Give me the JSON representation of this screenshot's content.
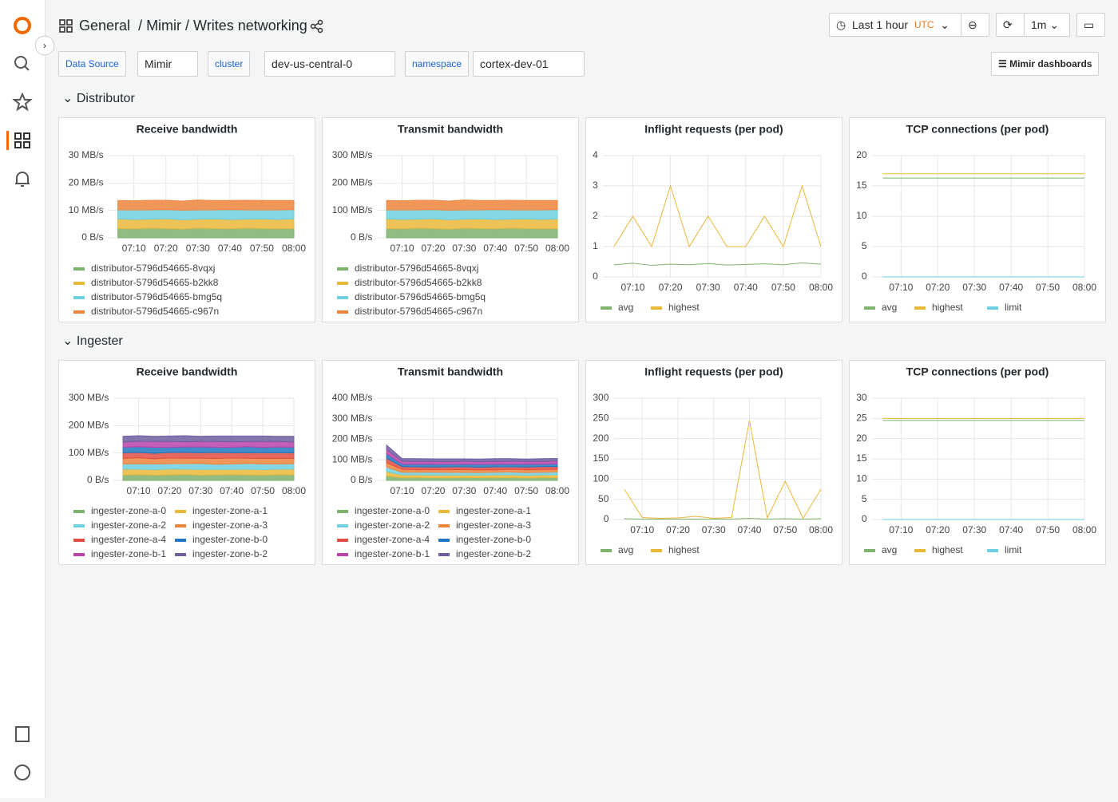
{
  "header": {
    "breadcrumb": [
      "General",
      "/ Mimir / Writes networking"
    ],
    "time_range": "Last 1 hour",
    "timezone": "UTC",
    "refresh": "1m"
  },
  "variables": [
    {
      "label": "Data Source",
      "value": "Mimir"
    },
    {
      "label": "cluster",
      "value": "dev-us-central-0"
    },
    {
      "label": "namespace",
      "value": "cortex-dev-01"
    }
  ],
  "links_button": "Mimir dashboards",
  "rows": [
    "Distributor",
    "Ingester"
  ],
  "chart_data": [
    {
      "type": "area",
      "stacked": true,
      "title": "Receive bandwidth",
      "x": [
        "07:05",
        "07:10",
        "07:15",
        "07:20",
        "07:25",
        "07:30",
        "07:35",
        "07:40",
        "07:45",
        "07:50",
        "07:55",
        "08:00"
      ],
      "xlim": [
        "07:02",
        "08:00"
      ],
      "xticks": [
        "07:10",
        "07:20",
        "07:30",
        "07:40",
        "07:50",
        "08:00"
      ],
      "ylim": [
        0,
        30
      ],
      "yticks": [
        {
          "value": 0,
          "label": "0 B/s"
        },
        {
          "value": 10,
          "label": "10 MB/s"
        },
        {
          "value": 20,
          "label": "20 MB/s"
        },
        {
          "value": 30,
          "label": "30 MB/s"
        }
      ],
      "grid": true,
      "legend": "bottom",
      "series": [
        {
          "name": "distributor-5796d54665-8vqxj",
          "color": "#7EB26D",
          "values": [
            3.4,
            3.3,
            3.5,
            3.4,
            3.2,
            3.5,
            3.4,
            3.3,
            3.5,
            3.4,
            3.3,
            3.4
          ]
        },
        {
          "name": "distributor-5796d54665-b2kk8",
          "color": "#EAB839",
          "values": [
            3.5,
            3.4,
            3.3,
            3.6,
            3.4,
            3.3,
            3.5,
            3.4,
            3.3,
            3.5,
            3.4,
            3.5
          ]
        },
        {
          "name": "distributor-5796d54665-bmg5q",
          "color": "#6ED0E0",
          "values": [
            3.3,
            3.5,
            3.4,
            3.3,
            3.5,
            3.4,
            3.3,
            3.6,
            3.4,
            3.3,
            3.5,
            3.4
          ]
        },
        {
          "name": "distributor-5796d54665-c967n",
          "color": "#EF843C",
          "values": [
            3.4,
            3.3,
            3.5,
            3.4,
            3.3,
            3.6,
            3.4,
            3.3,
            3.5,
            3.4,
            3.4,
            3.3
          ]
        }
      ]
    },
    {
      "type": "area",
      "stacked": true,
      "title": "Transmit bandwidth",
      "x": [
        "07:05",
        "07:10",
        "07:15",
        "07:20",
        "07:25",
        "07:30",
        "07:35",
        "07:40",
        "07:45",
        "07:50",
        "07:55",
        "08:00"
      ],
      "xlim": [
        "07:02",
        "08:00"
      ],
      "xticks": [
        "07:10",
        "07:20",
        "07:30",
        "07:40",
        "07:50",
        "08:00"
      ],
      "ylim": [
        0,
        300
      ],
      "yticks": [
        {
          "value": 0,
          "label": "0 B/s"
        },
        {
          "value": 100,
          "label": "100 MB/s"
        },
        {
          "value": 200,
          "label": "200 MB/s"
        },
        {
          "value": 300,
          "label": "300 MB/s"
        }
      ],
      "grid": true,
      "legend": "bottom",
      "series": [
        {
          "name": "distributor-5796d54665-8vqxj",
          "color": "#7EB26D",
          "values": [
            34,
            33,
            35,
            34,
            32,
            35,
            34,
            33,
            35,
            34,
            33,
            34
          ]
        },
        {
          "name": "distributor-5796d54665-b2kk8",
          "color": "#EAB839",
          "values": [
            35,
            34,
            33,
            36,
            34,
            33,
            35,
            34,
            33,
            35,
            34,
            35
          ]
        },
        {
          "name": "distributor-5796d54665-bmg5q",
          "color": "#6ED0E0",
          "values": [
            33,
            35,
            34,
            33,
            35,
            34,
            33,
            36,
            34,
            33,
            35,
            34
          ]
        },
        {
          "name": "distributor-5796d54665-c967n",
          "color": "#EF843C",
          "values": [
            34,
            33,
            35,
            34,
            33,
            36,
            34,
            33,
            35,
            34,
            34,
            33
          ]
        }
      ]
    },
    {
      "type": "line",
      "title": "Inflight requests (per pod)",
      "x": [
        "07:05",
        "07:10",
        "07:15",
        "07:20",
        "07:25",
        "07:30",
        "07:35",
        "07:40",
        "07:45",
        "07:50",
        "07:55",
        "08:00"
      ],
      "xlim": [
        "07:02",
        "08:00"
      ],
      "xticks": [
        "07:10",
        "07:20",
        "07:30",
        "07:40",
        "07:50",
        "08:00"
      ],
      "ylim": [
        0,
        4
      ],
      "yticks": [
        0,
        1,
        2,
        3,
        4
      ],
      "grid": true,
      "legend": "bottom",
      "series": [
        {
          "name": "avg",
          "color": "#7EB26D",
          "values": [
            0.4,
            0.45,
            0.38,
            0.42,
            0.4,
            0.44,
            0.39,
            0.41,
            0.43,
            0.4,
            0.46,
            0.42
          ]
        },
        {
          "name": "highest",
          "color": "#EAB839",
          "values": [
            1,
            2,
            1,
            3,
            1,
            2,
            1,
            1,
            2,
            1,
            3,
            1
          ]
        }
      ]
    },
    {
      "type": "line",
      "title": "TCP connections (per pod)",
      "x": [
        "07:05",
        "07:10",
        "07:15",
        "07:20",
        "07:25",
        "07:30",
        "07:35",
        "07:40",
        "07:45",
        "07:50",
        "07:55",
        "08:00"
      ],
      "xlim": [
        "07:02",
        "08:00"
      ],
      "xticks": [
        "07:10",
        "07:20",
        "07:30",
        "07:40",
        "07:50",
        "08:00"
      ],
      "ylim": [
        0,
        20
      ],
      "yticks": [
        0,
        5,
        10,
        15,
        20
      ],
      "grid": true,
      "legend": "bottom",
      "series": [
        {
          "name": "avg",
          "color": "#7EB26D",
          "values": [
            16.3,
            16.3,
            16.3,
            16.3,
            16.3,
            16.3,
            16.3,
            16.3,
            16.3,
            16.3,
            16.3,
            16.3
          ]
        },
        {
          "name": "highest",
          "color": "#EAB839",
          "values": [
            17,
            17,
            17,
            17,
            17,
            17,
            17,
            17,
            17,
            17,
            17,
            17
          ]
        },
        {
          "name": "limit",
          "color": "#6ED0E0",
          "values": [
            0,
            0,
            0,
            0,
            0,
            0,
            0,
            0,
            0,
            0,
            0,
            0
          ]
        }
      ]
    },
    {
      "type": "area",
      "stacked": true,
      "title": "Receive bandwidth",
      "x": [
        "07:05",
        "07:10",
        "07:15",
        "07:20",
        "07:25",
        "07:30",
        "07:35",
        "07:40",
        "07:45",
        "07:50",
        "07:55",
        "08:00"
      ],
      "xlim": [
        "07:02",
        "08:00"
      ],
      "xticks": [
        "07:10",
        "07:20",
        "07:30",
        "07:40",
        "07:50",
        "08:00"
      ],
      "ylim": [
        0,
        300
      ],
      "yticks": [
        {
          "value": 0,
          "label": "0 B/s"
        },
        {
          "value": 100,
          "label": "100 MB/s"
        },
        {
          "value": 200,
          "label": "200 MB/s"
        },
        {
          "value": 300,
          "label": "300 MB/s"
        }
      ],
      "grid": true,
      "legend": "bottom",
      "series": [
        {
          "name": "ingester-zone-a-0",
          "color": "#7EB26D",
          "values": [
            20,
            21,
            19,
            20,
            22,
            19,
            20,
            21,
            20,
            19,
            21,
            20
          ]
        },
        {
          "name": "ingester-zone-a-1",
          "color": "#EAB839",
          "values": [
            21,
            20,
            20,
            22,
            19,
            21,
            20,
            19,
            21,
            20,
            20,
            21
          ]
        },
        {
          "name": "ingester-zone-a-2",
          "color": "#6ED0E0",
          "values": [
            19,
            20,
            21,
            19,
            20,
            22,
            19,
            20,
            21,
            21,
            19,
            20
          ]
        },
        {
          "name": "ingester-zone-a-3",
          "color": "#EF843C",
          "values": [
            20,
            22,
            19,
            21,
            20,
            19,
            21,
            22,
            19,
            20,
            21,
            19
          ]
        },
        {
          "name": "ingester-zone-a-4",
          "color": "#E24D42",
          "values": [
            21,
            19,
            20,
            20,
            21,
            20,
            22,
            19,
            20,
            21,
            20,
            21
          ]
        },
        {
          "name": "ingester-zone-b-0",
          "color": "#1F78C1",
          "values": [
            20,
            21,
            22,
            19,
            20,
            21,
            19,
            20,
            22,
            19,
            21,
            20
          ]
        },
        {
          "name": "ingester-zone-b-1",
          "color": "#BA43A9",
          "values": [
            19,
            20,
            21,
            21,
            19,
            20,
            21,
            20,
            19,
            22,
            20,
            19
          ]
        },
        {
          "name": "ingester-zone-b-2",
          "color": "#705DA0",
          "values": [
            21,
            20,
            19,
            20,
            22,
            19,
            20,
            21,
            20,
            20,
            19,
            21
          ]
        }
      ]
    },
    {
      "type": "area",
      "stacked": true,
      "title": "Transmit bandwidth",
      "x": [
        "07:05",
        "07:10",
        "07:15",
        "07:20",
        "07:25",
        "07:30",
        "07:35",
        "07:40",
        "07:45",
        "07:50",
        "07:55",
        "08:00"
      ],
      "xlim": [
        "07:02",
        "08:00"
      ],
      "xticks": [
        "07:10",
        "07:20",
        "07:30",
        "07:40",
        "07:50",
        "08:00"
      ],
      "ylim": [
        0,
        400
      ],
      "yticks": [
        {
          "value": 0,
          "label": "0 B/s"
        },
        {
          "value": 100,
          "label": "100 MB/s"
        },
        {
          "value": 200,
          "label": "200 MB/s"
        },
        {
          "value": 300,
          "label": "300 MB/s"
        },
        {
          "value": 400,
          "label": "400 MB/s"
        }
      ],
      "grid": true,
      "legend": "bottom",
      "series": [
        {
          "name": "ingester-zone-a-0",
          "color": "#7EB26D",
          "values": [
            22,
            13,
            14,
            13,
            12,
            14,
            13,
            13,
            14,
            12,
            13,
            14
          ]
        },
        {
          "name": "ingester-zone-a-1",
          "color": "#EAB839",
          "values": [
            21,
            14,
            13,
            13,
            14,
            12,
            13,
            14,
            13,
            13,
            14,
            13
          ]
        },
        {
          "name": "ingester-zone-a-2",
          "color": "#6ED0E0",
          "values": [
            22,
            13,
            13,
            14,
            13,
            13,
            12,
            13,
            14,
            13,
            13,
            14
          ]
        },
        {
          "name": "ingester-zone-a-3",
          "color": "#EF843C",
          "values": [
            21,
            14,
            12,
            13,
            13,
            14,
            13,
            12,
            13,
            14,
            13,
            13
          ]
        },
        {
          "name": "ingester-zone-a-4",
          "color": "#E24D42",
          "values": [
            22,
            13,
            14,
            12,
            14,
            13,
            13,
            14,
            12,
            13,
            14,
            13
          ]
        },
        {
          "name": "ingester-zone-b-0",
          "color": "#1F78C1",
          "values": [
            21,
            12,
            13,
            14,
            13,
            13,
            14,
            13,
            13,
            14,
            12,
            14
          ]
        },
        {
          "name": "ingester-zone-b-1",
          "color": "#BA43A9",
          "values": [
            22,
            14,
            13,
            13,
            12,
            14,
            13,
            13,
            14,
            13,
            13,
            13
          ]
        },
        {
          "name": "ingester-zone-b-2",
          "color": "#705DA0",
          "values": [
            21,
            13,
            14,
            13,
            14,
            12,
            13,
            14,
            13,
            12,
            14,
            13
          ]
        }
      ]
    },
    {
      "type": "line",
      "title": "Inflight requests (per pod)",
      "x": [
        "07:05",
        "07:10",
        "07:15",
        "07:20",
        "07:25",
        "07:30",
        "07:35",
        "07:40",
        "07:45",
        "07:50",
        "07:55",
        "08:00"
      ],
      "xlim": [
        "07:02",
        "08:00"
      ],
      "xticks": [
        "07:10",
        "07:20",
        "07:30",
        "07:40",
        "07:50",
        "08:00"
      ],
      "ylim": [
        0,
        300
      ],
      "yticks": [
        0,
        50,
        100,
        150,
        200,
        250,
        300
      ],
      "grid": true,
      "legend": "bottom",
      "series": [
        {
          "name": "avg",
          "color": "#7EB26D",
          "values": [
            2,
            1,
            1,
            1,
            1,
            1,
            1,
            3,
            1,
            2,
            1,
            2
          ]
        },
        {
          "name": "highest",
          "color": "#EAB839",
          "values": [
            75,
            5,
            3,
            4,
            8,
            3,
            5,
            245,
            4,
            95,
            3,
            75
          ]
        }
      ]
    },
    {
      "type": "line",
      "title": "TCP connections (per pod)",
      "x": [
        "07:05",
        "07:10",
        "07:15",
        "07:20",
        "07:25",
        "07:30",
        "07:35",
        "07:40",
        "07:45",
        "07:50",
        "07:55",
        "08:00"
      ],
      "xlim": [
        "07:02",
        "08:00"
      ],
      "xticks": [
        "07:10",
        "07:20",
        "07:30",
        "07:40",
        "07:50",
        "08:00"
      ],
      "ylim": [
        0,
        30
      ],
      "yticks": [
        0,
        5,
        10,
        15,
        20,
        25,
        30
      ],
      "grid": true,
      "legend": "bottom",
      "series": [
        {
          "name": "avg",
          "color": "#7EB26D",
          "values": [
            24.5,
            24.5,
            24.5,
            24.5,
            24.5,
            24.5,
            24.5,
            24.5,
            24.5,
            24.5,
            24.5,
            24.5
          ]
        },
        {
          "name": "highest",
          "color": "#EAB839",
          "values": [
            25,
            25,
            25,
            25,
            25,
            25,
            25,
            25,
            25,
            25,
            25,
            25
          ]
        },
        {
          "name": "limit",
          "color": "#6ED0E0",
          "values": [
            0,
            0,
            0,
            0,
            0,
            0,
            0,
            0,
            0,
            0,
            0,
            0
          ]
        }
      ]
    }
  ]
}
